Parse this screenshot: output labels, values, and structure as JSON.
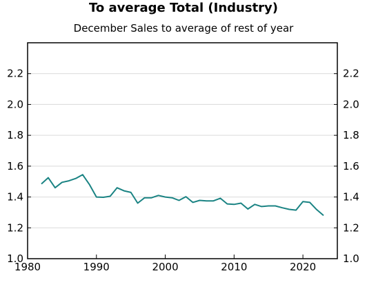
{
  "chart_data": {
    "type": "line",
    "title": "To average Total (Industry)",
    "subtitle": "December Sales to average of rest of year",
    "xlabel": "",
    "ylabel": "",
    "xlim": [
      1980,
      2025
    ],
    "ylim": [
      1.0,
      2.4
    ],
    "x_ticks": [
      1980,
      1990,
      2000,
      2010,
      2020
    ],
    "y_ticks": [
      1.0,
      1.2,
      1.4,
      1.6,
      1.8,
      2.0,
      2.2
    ],
    "y_tick_labels": [
      "1.0",
      "1.2",
      "1.4",
      "1.6",
      "1.8",
      "2.0",
      "2.2"
    ],
    "grid": "horizontal",
    "line_color": "#1a8383",
    "x": [
      1982,
      1983,
      1984,
      1985,
      1986,
      1987,
      1988,
      1989,
      1990,
      1991,
      1992,
      1993,
      1994,
      1995,
      1996,
      1997,
      1998,
      1999,
      2000,
      2001,
      2002,
      2003,
      2004,
      2005,
      2006,
      2007,
      2008,
      2009,
      2010,
      2011,
      2012,
      2013,
      2014,
      2015,
      2016,
      2017,
      2018,
      2019,
      2020,
      2021,
      2022,
      2023
    ],
    "values": [
      1.485,
      1.525,
      1.46,
      1.495,
      1.505,
      1.52,
      1.545,
      1.48,
      1.4,
      1.398,
      1.405,
      1.46,
      1.44,
      1.43,
      1.36,
      1.395,
      1.395,
      1.41,
      1.4,
      1.395,
      1.378,
      1.402,
      1.365,
      1.378,
      1.375,
      1.375,
      1.392,
      1.355,
      1.352,
      1.36,
      1.322,
      1.352,
      1.338,
      1.342,
      1.342,
      1.33,
      1.32,
      1.315,
      1.37,
      1.365,
      1.318,
      1.28
    ]
  }
}
